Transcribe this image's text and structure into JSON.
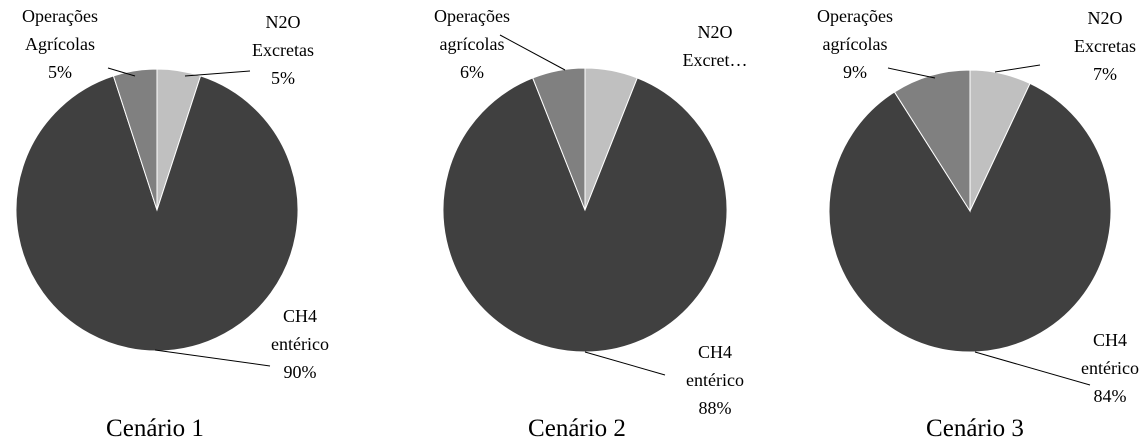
{
  "chart_data": [
    {
      "type": "pie",
      "title": "Cenário 1",
      "categories": [
        "N2O Excretas",
        "CH4 entérico",
        "Operações Agrícolas"
      ],
      "values": [
        5,
        90,
        5
      ],
      "value_labels": [
        "5%",
        "90%",
        "5%"
      ],
      "colors": [
        "#c0c0c0",
        "#404040",
        "#808080"
      ]
    },
    {
      "type": "pie",
      "title": "Cenário 2",
      "categories": [
        "N2O Excret…",
        "CH4 entérico",
        "Operações agrícolas"
      ],
      "values": [
        6,
        88,
        6
      ],
      "value_labels": [
        null,
        "88%",
        "6%"
      ],
      "colors": [
        "#c0c0c0",
        "#404040",
        "#808080"
      ]
    },
    {
      "type": "pie",
      "title": "Cenário 3",
      "categories": [
        "N2O Excretas",
        "CH4 entérico",
        "Operações agrícolas"
      ],
      "values": [
        7,
        84,
        9
      ],
      "value_labels": [
        "7%",
        "84%",
        "9%"
      ],
      "colors": [
        "#c0c0c0",
        "#404040",
        "#808080"
      ]
    }
  ]
}
